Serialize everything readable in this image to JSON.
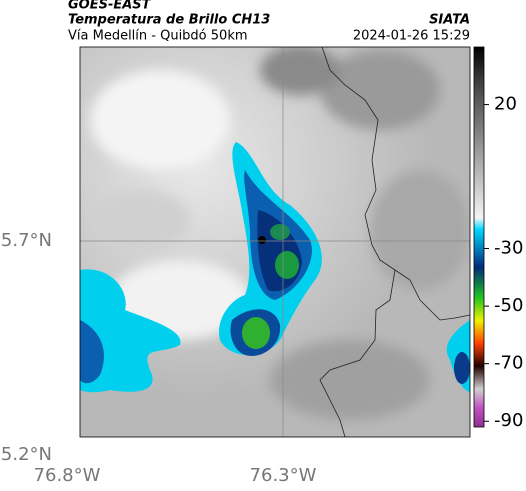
{
  "header": {
    "satellite": "GOES-EAST",
    "product": "Temperatura de Brillo CH13",
    "location": "Vía Medellín - Quibdó 50km",
    "source": "SIATA",
    "datetime": "2024-01-26 15:29"
  },
  "map": {
    "lat_labels": [
      "5.7°N",
      "5.2°N"
    ],
    "lon_labels": [
      "76.8°W",
      "76.3°W"
    ]
  },
  "colorbar": {
    "lim": [
      40,
      -92
    ],
    "ticks": [
      20,
      -30,
      -50,
      -70,
      -90
    ]
  }
}
